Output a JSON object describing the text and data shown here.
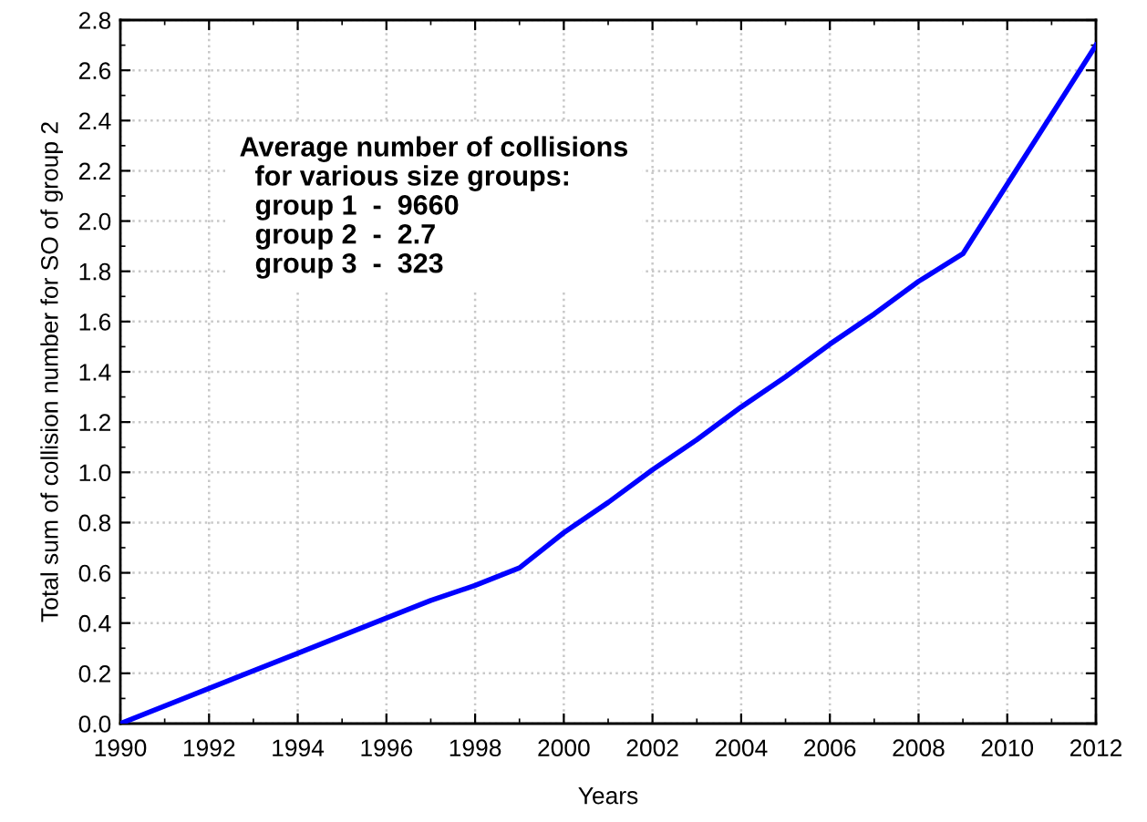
{
  "chart_data": {
    "type": "line",
    "xlabel": "Years",
    "ylabel": "Total sum of collision number for SO of group 2",
    "annotations": [
      "Average number of collisions\n  for various size groups:\n  group 1  -  9660\n  group 2  -  2.7\n  group 3  -  323"
    ],
    "x": [
      1990,
      1992,
      1994,
      1996,
      1997,
      1998,
      1999,
      2000,
      2001,
      2002,
      2003,
      2004,
      2005,
      2006,
      2007,
      2008,
      2009,
      2012
    ],
    "series": [
      {
        "color": "#0000ff",
        "values": [
          0.0,
          0.14,
          0.28,
          0.42,
          0.49,
          0.55,
          0.62,
          0.76,
          0.88,
          1.01,
          1.13,
          1.26,
          1.38,
          1.51,
          1.63,
          1.76,
          1.87,
          2.7
        ]
      }
    ],
    "xlim": [
      1990,
      2012
    ],
    "xticks": [
      1990,
      1992,
      1994,
      1996,
      1998,
      2000,
      2002,
      2004,
      2006,
      2008,
      2010,
      2012
    ],
    "ylim": [
      0,
      2.8
    ],
    "yticks": [
      {
        "value": 0,
        "label": "0.0"
      },
      0.2,
      0.4,
      0.6,
      0.8,
      {
        "value": 1,
        "label": "1.0"
      },
      1.2,
      1.4,
      1.6,
      1.8,
      {
        "value": 2,
        "label": "2.0"
      },
      2.2,
      2.4,
      2.6,
      2.8
    ],
    "grid": true,
    "marker": "none",
    "line_style": "solid"
  }
}
